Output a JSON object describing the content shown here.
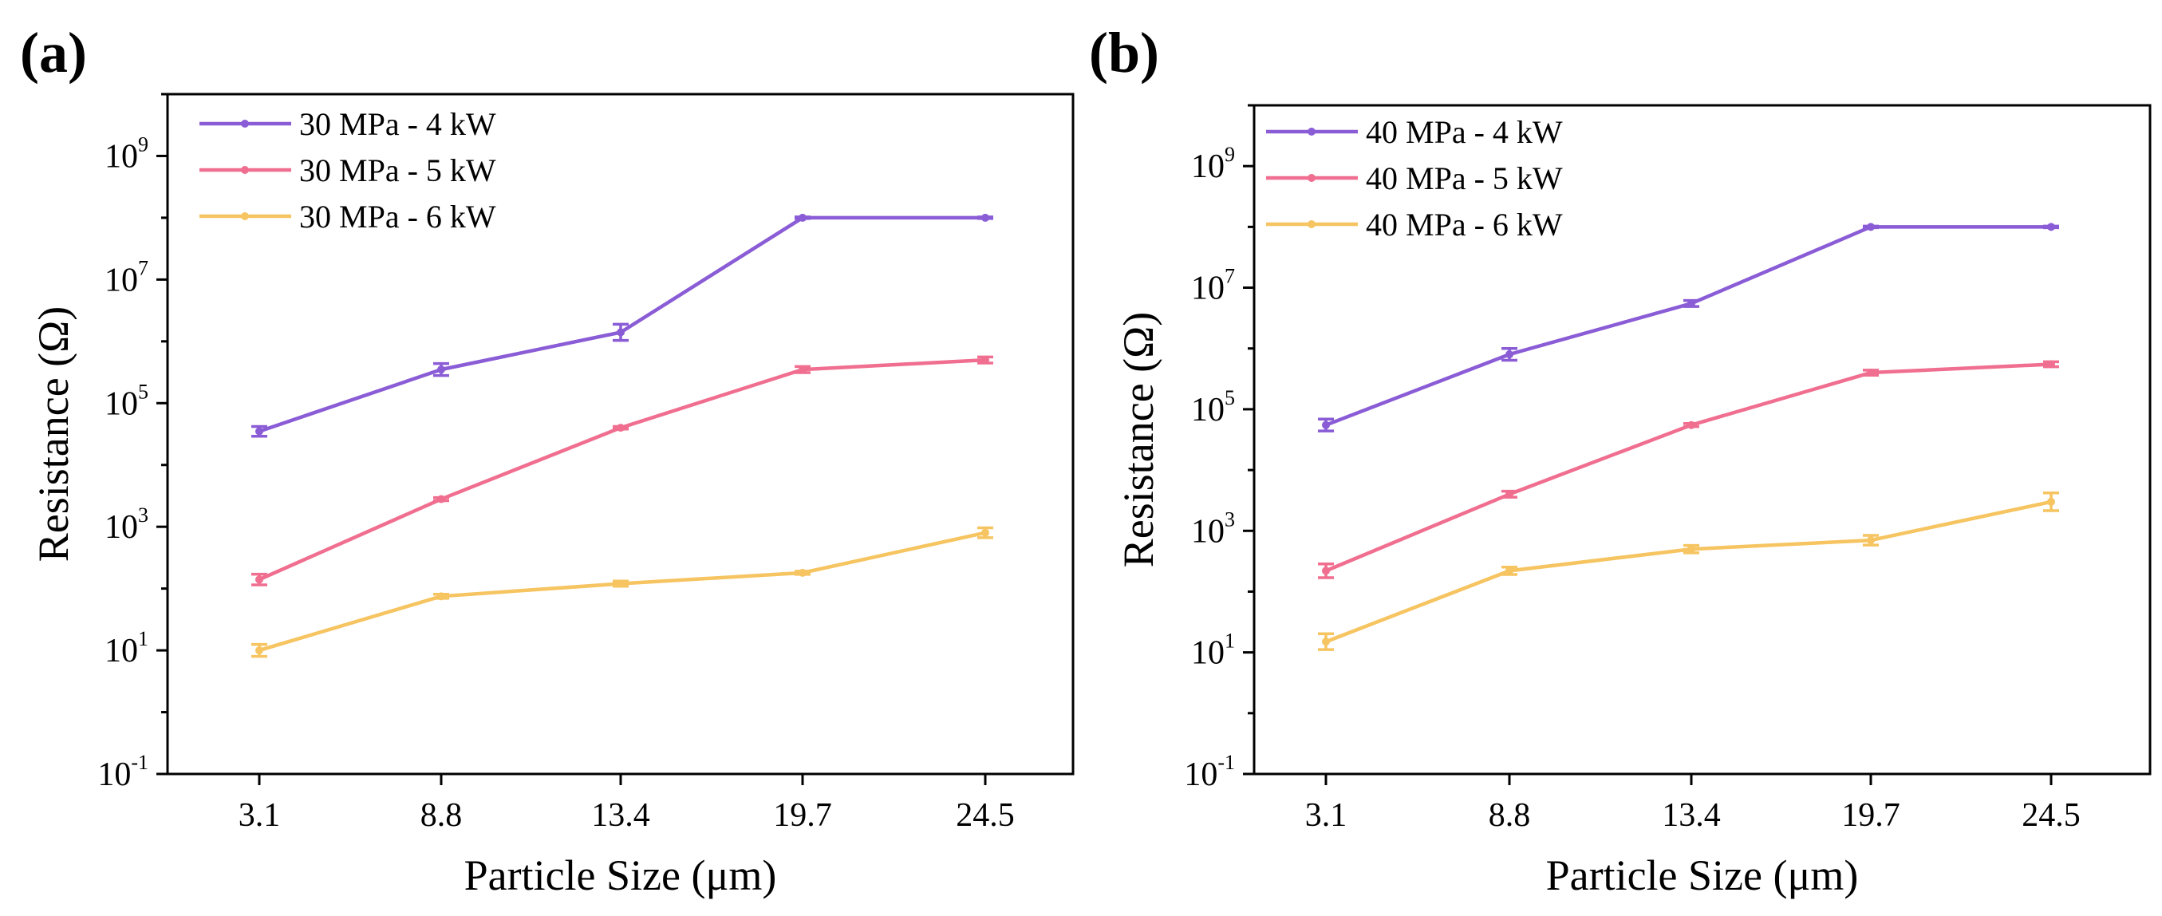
{
  "chart_data": [
    {
      "type": "line",
      "panel_label": "(a)",
      "xlabel": "Particle Size (μm)",
      "ylabel": "Resistance (Ω)",
      "yscale": "log",
      "ylim_exponent": [
        -1,
        10
      ],
      "categories": [
        "3.1",
        "8.8",
        "13.4",
        "19.7",
        "24.5"
      ],
      "y_ticks": [
        {
          "base": "10",
          "exp": "-1"
        },
        {
          "base": "10",
          "exp": "1"
        },
        {
          "base": "10",
          "exp": "3"
        },
        {
          "base": "10",
          "exp": "5"
        },
        {
          "base": "10",
          "exp": "7"
        },
        {
          "base": "10",
          "exp": "9"
        }
      ],
      "legend_position": "top-left",
      "grid": false,
      "series": [
        {
          "name": "30 MPa - 4 kW",
          "color": "#8a5cd6",
          "values": [
            35000,
            350000,
            1400000,
            100000000,
            100000000
          ],
          "errors_rel": [
            0.2,
            0.25,
            0.35,
            0.03,
            0.03
          ]
        },
        {
          "name": "30 MPa - 5 kW",
          "color": "#f06e8f",
          "values": [
            140,
            2800,
            40000,
            350000,
            500000
          ],
          "errors_rel": [
            0.22,
            0.06,
            0.05,
            0.12,
            0.12
          ]
        },
        {
          "name": "30 MPa - 6 kW",
          "color": "#f6c460",
          "values": [
            10,
            75,
            120,
            180,
            800
          ],
          "errors_rel": [
            0.25,
            0.08,
            0.1,
            0.06,
            0.2
          ]
        }
      ]
    },
    {
      "type": "line",
      "panel_label": "(b)",
      "xlabel": "Particle Size (μm)",
      "ylabel": "Resistance (Ω)",
      "yscale": "log",
      "ylim_exponent": [
        -1,
        10
      ],
      "categories": [
        "3.1",
        "8.8",
        "13.4",
        "19.7",
        "24.5"
      ],
      "y_ticks": [
        {
          "base": "10",
          "exp": "-1"
        },
        {
          "base": "10",
          "exp": "1"
        },
        {
          "base": "10",
          "exp": "3"
        },
        {
          "base": "10",
          "exp": "5"
        },
        {
          "base": "10",
          "exp": "7"
        },
        {
          "base": "10",
          "exp": "9"
        }
      ],
      "legend_position": "top-left",
      "grid": false,
      "series": [
        {
          "name": "40 MPa - 4 kW",
          "color": "#8a5cd6",
          "values": [
            55000,
            800000,
            5500000,
            100000000,
            100000000
          ],
          "errors_rel": [
            0.25,
            0.25,
            0.12,
            0.03,
            0.03
          ]
        },
        {
          "name": "40 MPa - 5 kW",
          "color": "#f06e8f",
          "values": [
            220,
            4000,
            55000,
            400000,
            550000
          ],
          "errors_rel": [
            0.3,
            0.12,
            0.06,
            0.1,
            0.1
          ]
        },
        {
          "name": "40 MPa - 6 kW",
          "color": "#f6c460",
          "values": [
            15,
            220,
            500,
            700,
            3000
          ],
          "errors_rel": [
            0.35,
            0.15,
            0.15,
            0.2,
            0.4
          ]
        }
      ]
    }
  ]
}
